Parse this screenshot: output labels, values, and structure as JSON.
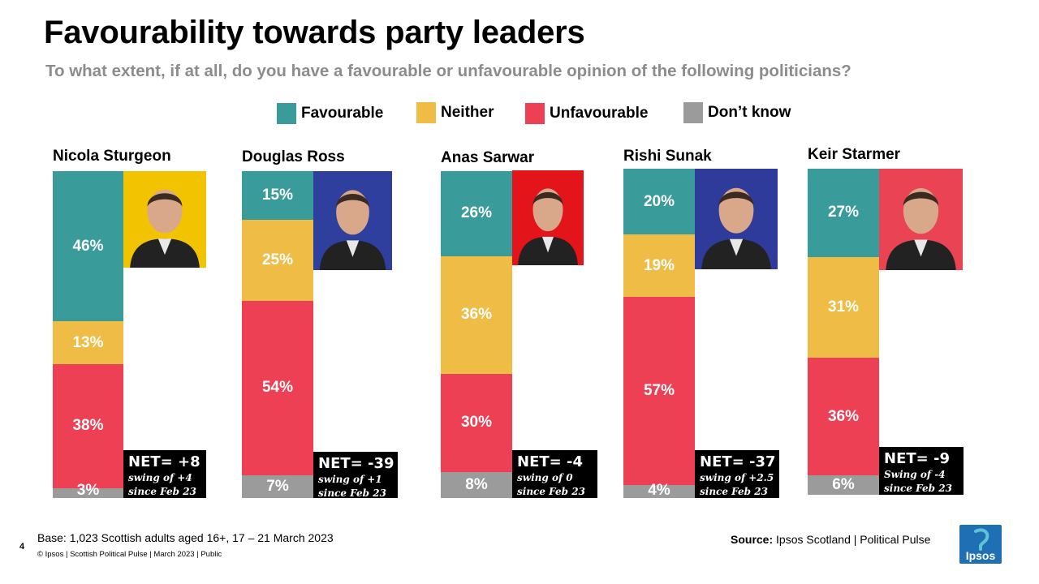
{
  "title": "Favourability towards party leaders",
  "subtitle": "To what extent, if at all, do you have a favourable or unfavourable opinion of the following politicians?",
  "legend": [
    {
      "label": "Favourable",
      "color": "#3a9b9b"
    },
    {
      "label": "Neither",
      "color": "#efbd46"
    },
    {
      "label": "Unfavourable",
      "color": "#ee4054"
    },
    {
      "label": "Don’t know",
      "color": "#9b9b9b"
    }
  ],
  "chart_data": {
    "type": "bar",
    "stacked": true,
    "orientation": "vertical",
    "title": "Favourability towards party leaders",
    "categories": [
      "Nicola Sturgeon",
      "Douglas Ross",
      "Anas Sarwar",
      "Rishi Sunak",
      "Keir Starmer"
    ],
    "series": [
      {
        "name": "Favourable",
        "values": [
          46,
          15,
          26,
          20,
          27
        ],
        "labels": [
          "46%",
          "15%",
          "26%",
          "20%",
          "27%"
        ]
      },
      {
        "name": "Neither",
        "values": [
          13,
          25,
          36,
          19,
          31
        ],
        "labels": [
          "13%",
          "25%",
          "36%",
          "19%",
          "31%"
        ]
      },
      {
        "name": "Unfavourable",
        "values": [
          38,
          54,
          30,
          57,
          36
        ],
        "labels": [
          "38%",
          "54%",
          "30%",
          "57%",
          "36%"
        ]
      },
      {
        "name": "Don’t know",
        "values": [
          3,
          7,
          8,
          4,
          6
        ],
        "labels": [
          "3%",
          "7%",
          "8%",
          "4%",
          "6%"
        ]
      }
    ],
    "ylim": [
      0,
      100
    ]
  },
  "leaders": [
    {
      "name": "Nicola Sturgeon",
      "portrait_bg": "#f2c300",
      "net": "NET= +8",
      "swing_1": "swing of +4",
      "swing_2": "since Feb 23"
    },
    {
      "name": "Douglas Ross",
      "portrait_bg": "#2e3f9e",
      "net": "NET= -39",
      "swing_1": "swing of +1",
      "swing_2": "since Feb 23"
    },
    {
      "name": "Anas Sarwar",
      "portrait_bg": "#e4141b",
      "net": "NET= -4",
      "swing_1": "swing of 0",
      "swing_2": "since Feb 23"
    },
    {
      "name": "Rishi Sunak",
      "portrait_bg": "#2f3b9a",
      "net": "NET= -37",
      "swing_1": "swing of +2.5",
      "swing_2": "since Feb 23"
    },
    {
      "name": "Keir Starmer",
      "portrait_bg": "#e94354",
      "net": "NET= -9",
      "swing_1": "Swing of -4",
      "swing_2": "since Feb 23"
    }
  ],
  "footer": {
    "base": "Base: 1,023 Scottish adults aged 16+, 17 – 21 March 2023",
    "copyright": "© Ipsos | Scottish Political Pulse | March 2023 | Public",
    "page_number": "4",
    "source_label": "Source:",
    "source_text": " Ipsos Scotland | Political Pulse",
    "logo_text": "Ipsos",
    "logo_color": "#1f6fb5"
  }
}
